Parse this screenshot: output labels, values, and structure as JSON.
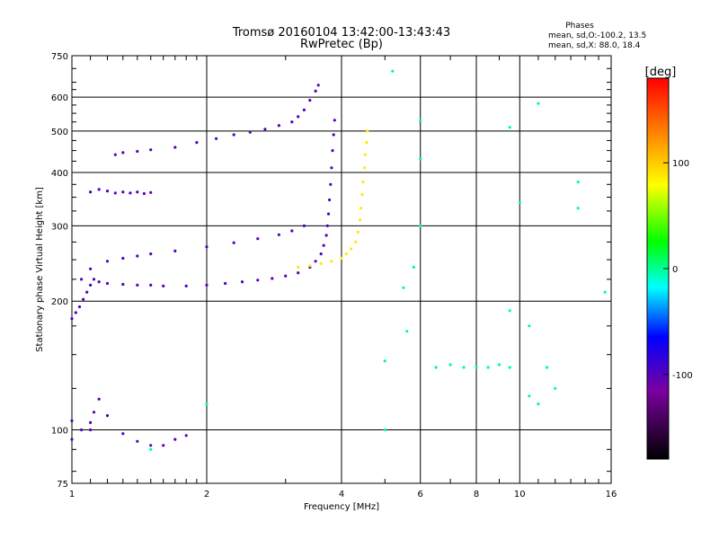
{
  "chart_data": {
    "type": "scatter",
    "title": "Tromsø 20160104 13:42:00-13:43:43",
    "subtitle": "RwPretec (Bp)",
    "xlabel": "Frequency [MHz]",
    "ylabel": "Stationary phase Virtual Height [km]",
    "x_scale": "log",
    "y_scale": "log",
    "xlim": [
      1,
      16
    ],
    "ylim": [
      75,
      750
    ],
    "x_ticks": [
      1,
      2,
      4,
      6,
      8,
      10,
      16
    ],
    "x_tick_labels": [
      "1",
      "2",
      "4",
      "6",
      "8",
      "10",
      "16"
    ],
    "x_minor_ticks": [
      1.1,
      1.2,
      1.3,
      1.4,
      1.5,
      1.6,
      1.7,
      1.8,
      1.9,
      3,
      5,
      7,
      9,
      11,
      12,
      13,
      14,
      15
    ],
    "y_ticks": [
      75,
      100,
      200,
      300,
      400,
      500,
      600,
      750
    ],
    "y_tick_labels": [
      "75",
      "100",
      "200",
      "300",
      "400",
      "500",
      "600",
      "750"
    ],
    "y_minor_ticks": [
      80,
      90,
      125,
      150,
      175,
      225,
      250,
      275,
      325,
      350,
      375,
      425,
      450,
      475,
      525,
      550,
      575,
      625,
      650,
      700
    ],
    "grid": true,
    "info": {
      "title": "Phases",
      "line1": "mean, sd,O:-100.2, 13.5",
      "line2": "mean, sd,X:  88.0, 18.4"
    },
    "colorbar": {
      "label": "[deg]",
      "vmin": -180,
      "vmax": 180,
      "ticks": [
        100,
        0,
        -100
      ],
      "tick_labels": [
        "100",
        "0",
        "-100"
      ]
    },
    "series": [
      {
        "trace": "O",
        "phase": -100,
        "points": [
          [
            1.0,
            182
          ],
          [
            1.02,
            188
          ],
          [
            1.04,
            194
          ],
          [
            1.06,
            202
          ],
          [
            1.08,
            210
          ],
          [
            1.1,
            218
          ],
          [
            1.12,
            225
          ],
          [
            1.15,
            222
          ],
          [
            1.2,
            220
          ],
          [
            1.3,
            219
          ],
          [
            1.4,
            218
          ],
          [
            1.5,
            218
          ],
          [
            1.6,
            217
          ],
          [
            1.8,
            217
          ],
          [
            2.0,
            218
          ],
          [
            2.2,
            220
          ],
          [
            2.4,
            222
          ],
          [
            2.6,
            224
          ],
          [
            2.8,
            226
          ],
          [
            3.0,
            229
          ],
          [
            3.2,
            233
          ],
          [
            3.4,
            240
          ],
          [
            3.5,
            248
          ],
          [
            3.6,
            258
          ],
          [
            3.65,
            270
          ],
          [
            3.7,
            285
          ],
          [
            3.72,
            300
          ],
          [
            3.74,
            320
          ],
          [
            3.76,
            345
          ],
          [
            3.78,
            375
          ],
          [
            3.8,
            410
          ],
          [
            3.82,
            450
          ],
          [
            3.84,
            490
          ],
          [
            3.86,
            530
          ]
        ]
      },
      {
        "trace": "O-upper",
        "phase": -100,
        "points": [
          [
            1.05,
            225
          ],
          [
            1.1,
            238
          ],
          [
            1.2,
            248
          ],
          [
            1.3,
            252
          ],
          [
            1.4,
            255
          ],
          [
            1.5,
            258
          ],
          [
            1.7,
            262
          ],
          [
            2.0,
            268
          ],
          [
            2.3,
            274
          ],
          [
            2.6,
            280
          ],
          [
            2.9,
            286
          ],
          [
            3.1,
            292
          ],
          [
            3.3,
            300
          ]
        ]
      },
      {
        "trace": "O-F1",
        "phase": -100,
        "points": [
          [
            1.25,
            440
          ],
          [
            1.3,
            445
          ],
          [
            1.4,
            448
          ],
          [
            1.5,
            452
          ],
          [
            1.7,
            458
          ],
          [
            1.9,
            470
          ],
          [
            2.1,
            480
          ],
          [
            2.3,
            490
          ],
          [
            2.5,
            497
          ],
          [
            2.7,
            505
          ],
          [
            2.9,
            515
          ],
          [
            3.1,
            525
          ],
          [
            3.2,
            540
          ],
          [
            3.3,
            560
          ],
          [
            3.4,
            590
          ],
          [
            3.5,
            620
          ],
          [
            3.55,
            640
          ]
        ]
      },
      {
        "trace": "O-early",
        "phase": -100,
        "points": [
          [
            1.1,
            360
          ],
          [
            1.15,
            365
          ],
          [
            1.2,
            362
          ],
          [
            1.25,
            358
          ],
          [
            1.3,
            360
          ],
          [
            1.35,
            358
          ],
          [
            1.4,
            360
          ],
          [
            1.45,
            357
          ],
          [
            1.5,
            359
          ]
        ]
      },
      {
        "trace": "E",
        "phase": -100,
        "points": [
          [
            1.0,
            95
          ],
          [
            1.05,
            100
          ],
          [
            1.1,
            104
          ],
          [
            1.12,
            110
          ],
          [
            1.15,
            118
          ],
          [
            1.2,
            108
          ],
          [
            1.3,
            98
          ],
          [
            1.4,
            94
          ],
          [
            1.5,
            92
          ],
          [
            1.6,
            92
          ],
          [
            1.7,
            95
          ],
          [
            1.8,
            97
          ],
          [
            1.0,
            105
          ],
          [
            1.1,
            100
          ]
        ]
      },
      {
        "trace": "X",
        "phase": 88,
        "points": [
          [
            3.2,
            240
          ],
          [
            3.4,
            242
          ],
          [
            3.6,
            245
          ],
          [
            3.8,
            248
          ],
          [
            4.0,
            252
          ],
          [
            4.1,
            258
          ],
          [
            4.2,
            265
          ],
          [
            4.3,
            275
          ],
          [
            4.35,
            290
          ],
          [
            4.4,
            310
          ],
          [
            4.42,
            330
          ],
          [
            4.45,
            355
          ],
          [
            4.47,
            380
          ],
          [
            4.5,
            410
          ],
          [
            4.52,
            440
          ],
          [
            4.55,
            470
          ],
          [
            4.57,
            500
          ]
        ]
      },
      {
        "trace": "scatter",
        "phase": 0,
        "points": [
          [
            5.0,
            145
          ],
          [
            6.5,
            140
          ],
          [
            7.0,
            142
          ],
          [
            7.5,
            140
          ],
          [
            8.0,
            140
          ],
          [
            8.5,
            140
          ],
          [
            9.0,
            142
          ],
          [
            9.5,
            140
          ],
          [
            10.5,
            120
          ],
          [
            11,
            115
          ],
          [
            12,
            125
          ],
          [
            13.5,
            380
          ],
          [
            13.5,
            330
          ],
          [
            15.5,
            210
          ],
          [
            10,
            340
          ],
          [
            11,
            580
          ],
          [
            9.5,
            510
          ],
          [
            5.6,
            170
          ],
          [
            5.8,
            240
          ],
          [
            6,
            300
          ],
          [
            6,
            430
          ],
          [
            6,
            530
          ],
          [
            5.2,
            690
          ],
          [
            5.5,
            215
          ],
          [
            5,
            100
          ],
          [
            9.5,
            190
          ],
          [
            10.5,
            175
          ],
          [
            11.5,
            140
          ],
          [
            2.0,
            115
          ],
          [
            1.5,
            90
          ]
        ]
      }
    ]
  }
}
